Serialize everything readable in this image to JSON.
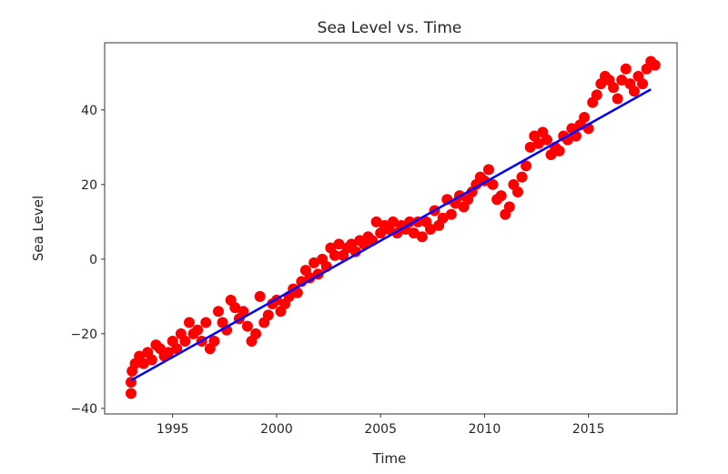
{
  "chart_data": {
    "type": "scatter",
    "title": "Sea Level vs. Time",
    "xlabel": "Time",
    "ylabel": "Sea Level",
    "xlim": [
      1991.73,
      2019.26
    ],
    "ylim": [
      -41.5,
      58
    ],
    "xticks": [
      1995,
      2000,
      2005,
      2010,
      2015
    ],
    "xtick_labels": [
      "1995",
      "2000",
      "2005",
      "2010",
      "2015"
    ],
    "yticks": [
      -40,
      -20,
      0,
      20,
      40
    ],
    "ytick_labels": [
      "−40",
      "−20",
      "0",
      "20",
      "40"
    ],
    "grid": false,
    "colors": {
      "points": "#ff0000",
      "fit_line": "#0000ff"
    },
    "series": [
      {
        "name": "Sea Level",
        "kind": "scatter",
        "x": [
          1993.0,
          1993.0,
          1993.05,
          1993.2,
          1993.4,
          1993.6,
          1993.8,
          1994.0,
          1994.2,
          1994.4,
          1994.6,
          1994.8,
          1995.0,
          1995.2,
          1995.4,
          1995.6,
          1995.8,
          1996.0,
          1996.2,
          1996.4,
          1996.6,
          1996.8,
          1997.0,
          1997.2,
          1997.4,
          1997.6,
          1997.8,
          1998.0,
          1998.2,
          1998.4,
          1998.6,
          1998.8,
          1999.0,
          1999.2,
          1999.4,
          1999.6,
          1999.8,
          2000.0,
          2000.2,
          2000.4,
          2000.6,
          2000.8,
          2001.0,
          2001.2,
          2001.4,
          2001.6,
          2001.8,
          2002.0,
          2002.2,
          2002.4,
          2002.6,
          2002.8,
          2003.0,
          2003.2,
          2003.4,
          2003.6,
          2003.8,
          2004.0,
          2004.2,
          2004.4,
          2004.6,
          2004.8,
          2005.0,
          2005.2,
          2005.4,
          2005.6,
          2005.8,
          2006.0,
          2006.2,
          2006.4,
          2006.6,
          2006.8,
          2007.0,
          2007.2,
          2007.4,
          2007.6,
          2007.8,
          2008.0,
          2008.2,
          2008.4,
          2008.6,
          2008.8,
          2009.0,
          2009.2,
          2009.4,
          2009.6,
          2009.8,
          2010.0,
          2010.2,
          2010.4,
          2010.6,
          2010.8,
          2011.0,
          2011.2,
          2011.4,
          2011.6,
          2011.8,
          2012.0,
          2012.2,
          2012.4,
          2012.6,
          2012.8,
          2013.0,
          2013.2,
          2013.4,
          2013.6,
          2013.8,
          2014.0,
          2014.2,
          2014.4,
          2014.6,
          2014.8,
          2015.0,
          2015.2,
          2015.4,
          2015.6,
          2015.8,
          2016.0,
          2016.2,
          2016.4,
          2016.6,
          2016.8,
          2017.0,
          2017.2,
          2017.4,
          2017.6,
          2017.8,
          2018.0,
          2018.2
        ],
        "y": [
          -33,
          -36,
          -30,
          -28,
          -26,
          -28,
          -25,
          -27,
          -23,
          -24,
          -26,
          -25,
          -22,
          -24,
          -20,
          -22,
          -17,
          -20,
          -19,
          -22,
          -17,
          -24,
          -22,
          -14,
          -17,
          -19,
          -11,
          -13,
          -16,
          -14,
          -18,
          -22,
          -20,
          -10,
          -17,
          -15,
          -12,
          -11,
          -14,
          -12,
          -10,
          -8,
          -9,
          -6,
          -3,
          -5,
          -1,
          -4,
          0,
          -2,
          3,
          1,
          4,
          1,
          3,
          4,
          2,
          5,
          4,
          6,
          5,
          10,
          7,
          9,
          8,
          10,
          7,
          9,
          8,
          10,
          7,
          10,
          6,
          10,
          8,
          13,
          9,
          11,
          16,
          12,
          15,
          17,
          14,
          16,
          18,
          20,
          22,
          21,
          24,
          20,
          16,
          17,
          12,
          14,
          20,
          18,
          22,
          25,
          30,
          33,
          31,
          34,
          32,
          28,
          30,
          29,
          33,
          32,
          35,
          33,
          36,
          38,
          35,
          42,
          44,
          47,
          49,
          48,
          46,
          43,
          48,
          51,
          47,
          45,
          49,
          47,
          51,
          53,
          52
        ]
      },
      {
        "name": "Linear fit",
        "kind": "line",
        "x": [
          1993.0,
          2018.0
        ],
        "y": [
          -32.5,
          45.5
        ]
      }
    ]
  }
}
